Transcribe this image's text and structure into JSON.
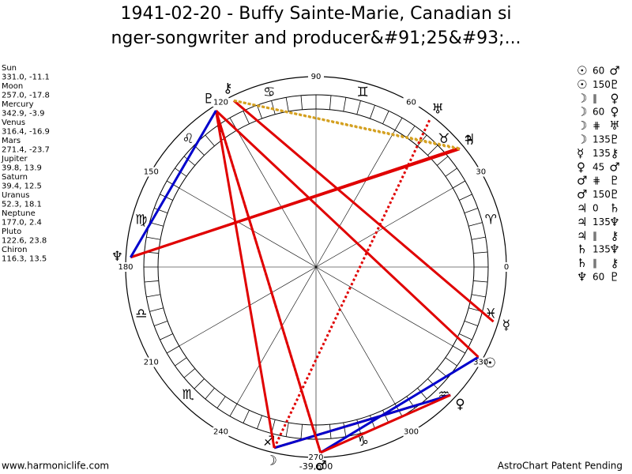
{
  "header": {
    "title_lines": [
      "1941-02-20 - Buffy Sainte-Marie, Canadian si",
      "nger-songwriter and producer&#91;25&#93;..."
    ]
  },
  "planets": [
    {
      "name": "Sun",
      "glyph": "☉",
      "coords": "331.0, -11.1",
      "longitude": 331.0
    },
    {
      "name": "Moon",
      "glyph": "☽",
      "coords": "257.0, -17.8",
      "longitude": 257.0
    },
    {
      "name": "Mercury",
      "glyph": "☿",
      "coords": "342.9, -3.9",
      "longitude": 342.9
    },
    {
      "name": "Venus",
      "glyph": "♀",
      "coords": "316.4, -16.9",
      "longitude": 316.4
    },
    {
      "name": "Mars",
      "glyph": "♂",
      "coords": "271.4, -23.7",
      "longitude": 271.4
    },
    {
      "name": "Jupiter",
      "glyph": "♃",
      "coords": "39.8, 13.9",
      "longitude": 39.8
    },
    {
      "name": "Saturn",
      "glyph": "♄",
      "coords": "39.4, 12.5",
      "longitude": 39.4
    },
    {
      "name": "Uranus",
      "glyph": "♅",
      "coords": "52.3, 18.1",
      "longitude": 52.3
    },
    {
      "name": "Neptune",
      "glyph": "♆",
      "coords": "177.0, 2.4",
      "longitude": 177.0
    },
    {
      "name": "Pluto",
      "glyph": "♇",
      "coords": "122.6, 23.8",
      "longitude": 122.6
    },
    {
      "name": "Chiron",
      "glyph": "⚷",
      "coords": "116.3, 13.5",
      "longitude": 116.3
    }
  ],
  "aspects": [
    {
      "planet1": "☉",
      "aspect": "60",
      "planet2": "♂",
      "color": "#0000cc",
      "dotted": false
    },
    {
      "planet1": "☉",
      "aspect": "150",
      "planet2": "♇",
      "color": "#e00000",
      "dotted": false
    },
    {
      "planet1": "☽",
      "aspect": "∥",
      "planet2": "♀",
      "color": "#e00000",
      "dotted": false
    },
    {
      "planet1": "☽",
      "aspect": "60",
      "planet2": "♀",
      "color": "#0000cc",
      "dotted": false
    },
    {
      "planet1": "☽",
      "aspect": "⋕",
      "planet2": "♅",
      "color": "#e00000",
      "dotted": true
    },
    {
      "planet1": "☽",
      "aspect": "135",
      "planet2": "♇",
      "color": "#e00000",
      "dotted": false
    },
    {
      "planet1": "☿",
      "aspect": "135",
      "planet2": "⚷",
      "color": "#e00000",
      "dotted": false
    },
    {
      "planet1": "♀",
      "aspect": "45",
      "planet2": "♂",
      "color": "#e00000",
      "dotted": false
    },
    {
      "planet1": "♂",
      "aspect": "⋕",
      "planet2": "♇",
      "color": "#e00000",
      "dotted": true
    },
    {
      "planet1": "♂",
      "aspect": "150",
      "planet2": "♇",
      "color": "#e00000",
      "dotted": false
    },
    {
      "planet1": "♃",
      "aspect": "0",
      "planet2": "♄",
      "color": "#e00000",
      "dotted": false
    },
    {
      "planet1": "♃",
      "aspect": "135",
      "planet2": "♆",
      "color": "#e00000",
      "dotted": false
    },
    {
      "planet1": "♃",
      "aspect": "∥",
      "planet2": "⚷",
      "color": "#d4a020",
      "dotted": true
    },
    {
      "planet1": "♄",
      "aspect": "135",
      "planet2": "♆",
      "color": "#e00000",
      "dotted": false
    },
    {
      "planet1": "♄",
      "aspect": "∥",
      "planet2": "⚷",
      "color": "#d4a020",
      "dotted": true
    },
    {
      "planet1": "♆",
      "aspect": "60",
      "planet2": "♇",
      "color": "#0000cc",
      "dotted": false
    }
  ],
  "signs": [
    "♈",
    "♉",
    "♊",
    "♋",
    "♌",
    "♍",
    "♎",
    "♏",
    "♐",
    "♑",
    "♒",
    "♓"
  ],
  "degree_labels": [
    0,
    30,
    60,
    90,
    120,
    150,
    180,
    210,
    240,
    270,
    300,
    330
  ],
  "bottom_value": "-39,600",
  "footer": {
    "left": "www.harmoniclife.com",
    "right": "AstroChart Patent Pending"
  }
}
